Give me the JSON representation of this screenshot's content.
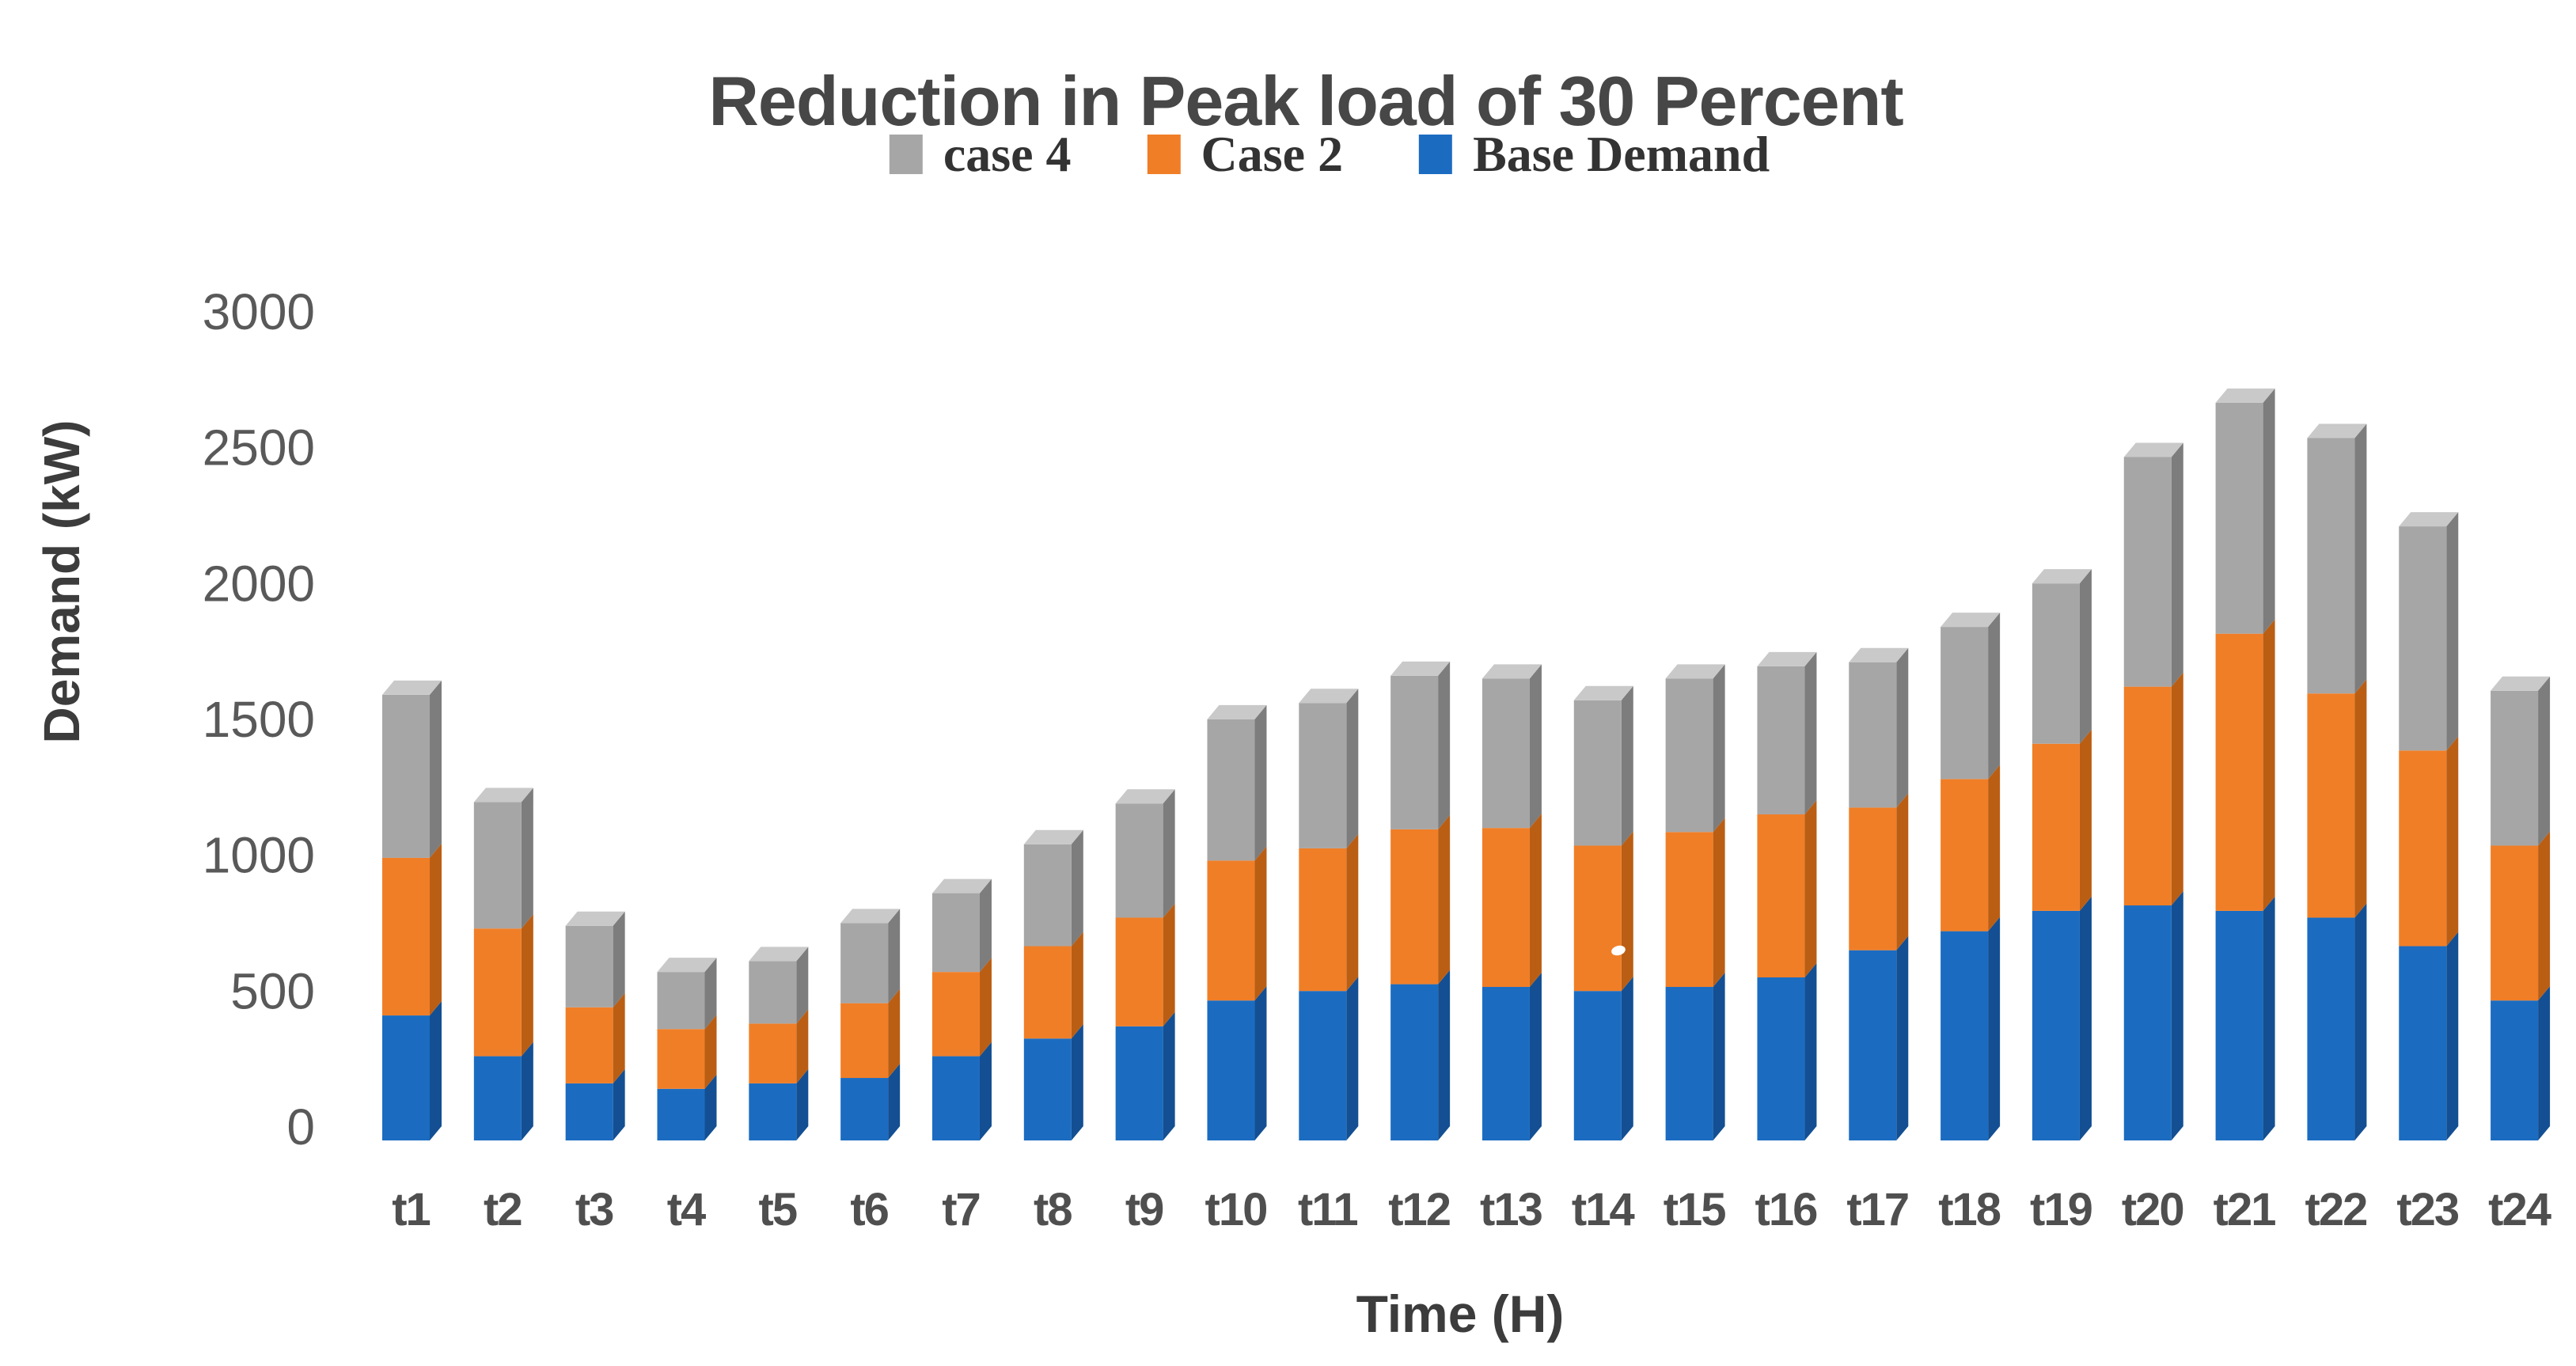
{
  "title": "Reduction in Peak load of 30 Percent",
  "legend": {
    "items": [
      {
        "label": "case 4",
        "color": "#A6A6A6"
      },
      {
        "label": "Case 2",
        "color": "#F07E27"
      },
      {
        "label": "Base Demand",
        "color": "#1B6CC1"
      }
    ]
  },
  "y_axis": {
    "title": "Demand (kW)",
    "ticks": [
      3000,
      2500,
      2000,
      1500,
      1000,
      500,
      0
    ]
  },
  "x_axis": {
    "title": "Time (H)"
  },
  "chart_data": {
    "type": "bar",
    "stacked": true,
    "style": "3d-column",
    "title": "Reduction in Peak load of 30 Percent",
    "xlabel": "Time (H)",
    "ylabel": "Demand (kW)",
    "ylim": [
      0,
      3000
    ],
    "ytick_step": 500,
    "gridlines": false,
    "legend_position": "top",
    "legend_order": [
      "case 4",
      "Case 2",
      "Base Demand"
    ],
    "categories": [
      "t1",
      "t2",
      "t3",
      "t4",
      "t5",
      "t6",
      "t7",
      "t8",
      "t9",
      "t10",
      "t11",
      "t12",
      "t13",
      "t14",
      "t15",
      "t16",
      "t17",
      "t18",
      "t19",
      "t20",
      "t21",
      "t22",
      "t23",
      "t24"
    ],
    "series": [
      {
        "name": "Base Demand",
        "color": "#1B6CC1",
        "side_color": "#134F92",
        "values": [
          460,
          310,
          210,
          190,
          210,
          230,
          310,
          375,
          420,
          515,
          550,
          575,
          565,
          550,
          565,
          600,
          700,
          770,
          845,
          865,
          845,
          820,
          715,
          515
        ]
      },
      {
        "name": "Case 2",
        "color": "#F07E27",
        "side_color": "#BA5E14",
        "values": [
          580,
          470,
          280,
          220,
          220,
          275,
          310,
          340,
          400,
          515,
          525,
          570,
          585,
          535,
          570,
          600,
          525,
          560,
          615,
          805,
          1020,
          825,
          720,
          570
        ]
      },
      {
        "name": "case 4",
        "color": "#A6A6A6",
        "side_color": "#7D7D7D",
        "top_color": "#C9C9C9",
        "values": [
          600,
          465,
          300,
          210,
          230,
          295,
          290,
          375,
          420,
          520,
          535,
          565,
          550,
          535,
          565,
          545,
          535,
          560,
          590,
          845,
          850,
          940,
          825,
          570
        ]
      }
    ],
    "totals": [
      1640,
      1245,
      790,
      620,
      660,
      800,
      910,
      1090,
      1240,
      1550,
      1610,
      1710,
      1700,
      1620,
      1700,
      1745,
      1760,
      1890,
      2050,
      2515,
      2715,
      2585,
      2260,
      1655
    ]
  }
}
